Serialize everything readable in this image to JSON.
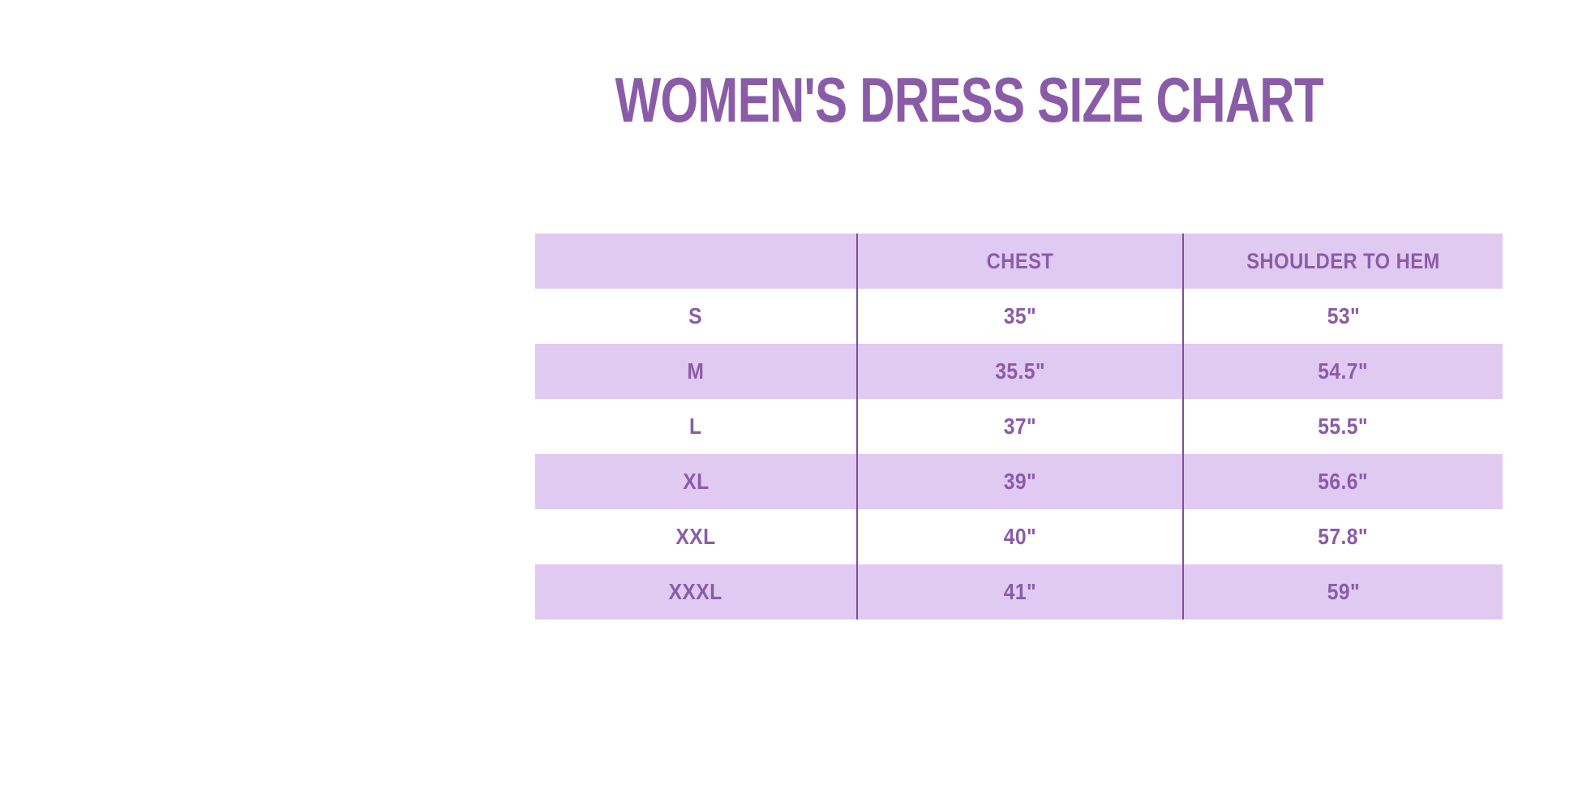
{
  "title": {
    "text": "WOMEN'S DRESS SIZE CHART"
  },
  "colors": {
    "background": "#FFFFFF",
    "band": "#E1CAF1",
    "text": "#8A5CA8",
    "divider": "#7C4F9C"
  },
  "table": {
    "columns": [
      "",
      "CHEST",
      "SHOULDER TO HEM"
    ],
    "rows": [
      {
        "size": "S",
        "chest": "35\"",
        "shoulder_to_hem": "53\""
      },
      {
        "size": "M",
        "chest": "35.5\"",
        "shoulder_to_hem": "54.7\""
      },
      {
        "size": "L",
        "chest": "37\"",
        "shoulder_to_hem": "55.5\""
      },
      {
        "size": "XL",
        "chest": "39\"",
        "shoulder_to_hem": "56.6\""
      },
      {
        "size": "XXL",
        "chest": "40\"",
        "shoulder_to_hem": "57.8\""
      },
      {
        "size": "XXXL",
        "chest": "41\"",
        "shoulder_to_hem": "59\""
      }
    ]
  },
  "chart_data": {
    "type": "table",
    "title": "WOMEN'S DRESS SIZE CHART",
    "columns": [
      "",
      "CHEST",
      "SHOULDER TO HEM"
    ],
    "rows": [
      [
        "S",
        "35\"",
        "53\""
      ],
      [
        "M",
        "35.5\"",
        "54.7\""
      ],
      [
        "L",
        "37\"",
        "55.5\""
      ],
      [
        "XL",
        "39\"",
        "56.6\""
      ],
      [
        "XXL",
        "40\"",
        "57.8\""
      ],
      [
        "XXXL",
        "41\"",
        "59\""
      ]
    ],
    "layout": {
      "striping": "header and even data rows lavender #E1CAF1, odd data rows white",
      "dividers": "two vertical purple lines between the three columns, full table height",
      "legend": "none",
      "grid": "off"
    }
  }
}
